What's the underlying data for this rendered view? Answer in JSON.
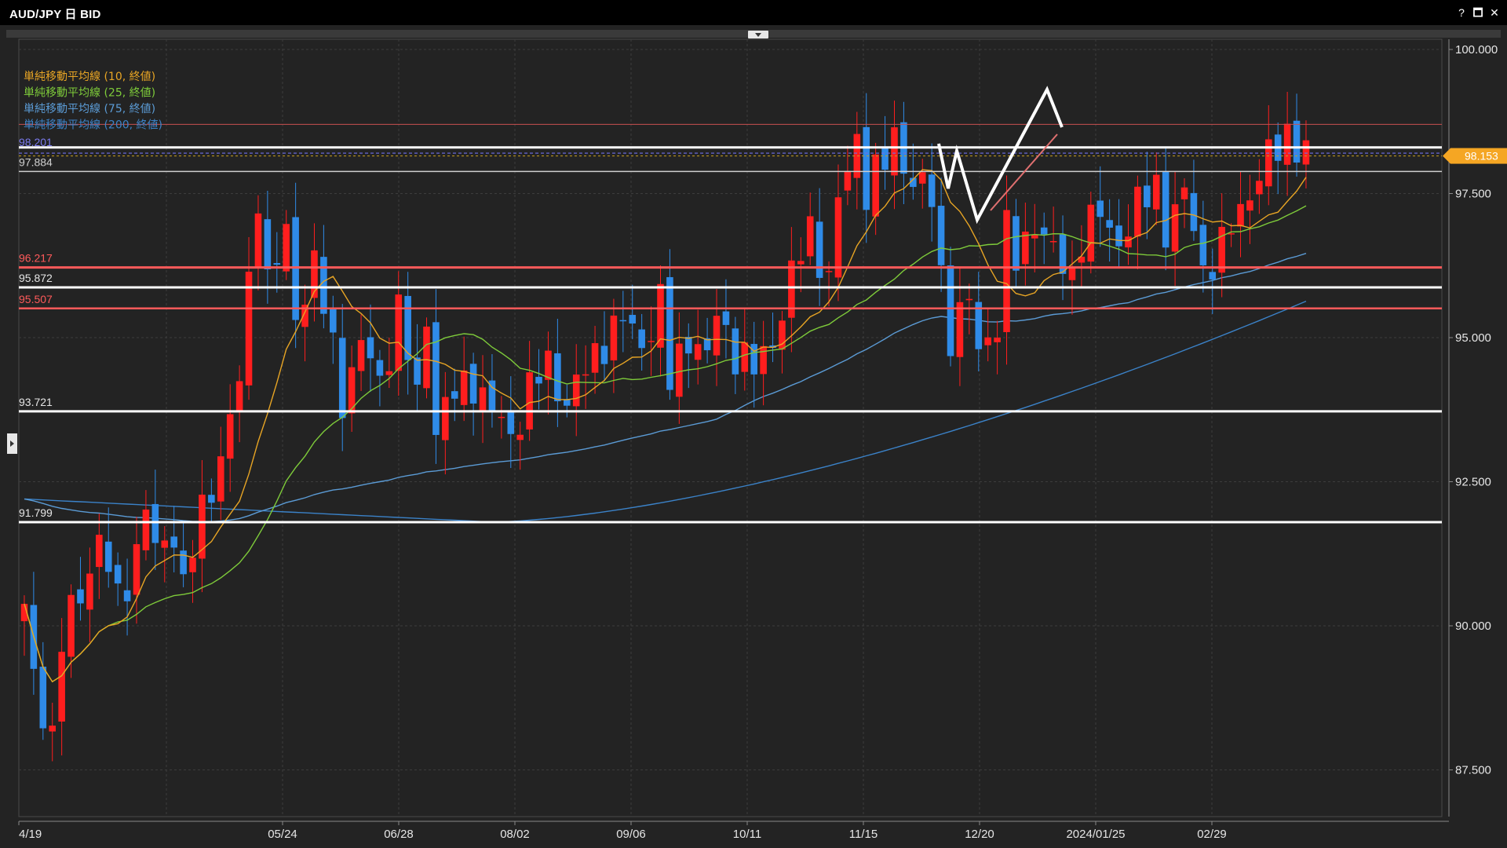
{
  "window": {
    "title": "AUD/JPY 日 BID",
    "help_label": "?",
    "maximize_label": "🗖",
    "close_label": "✕"
  },
  "icons": {
    "help": "question-icon",
    "maximize": "maximize-icon",
    "close": "close-icon",
    "collapse": "chevron-down-icon",
    "side": "chevron-right-icon"
  },
  "colors": {
    "background": "#232323",
    "up_candle": "#ff1e1e",
    "down_candle": "#2f8be8",
    "sma10": "#e8a524",
    "sma25": "#7ecb3a",
    "sma75": "#5b9bd5",
    "sma200": "#3b82c8",
    "support_white": "#ffffff",
    "support_red": "#ff5a5a",
    "current_price_badge": "#f5a623"
  },
  "chart_data": {
    "type": "candlestick",
    "title": "AUD/JPY 日 BID",
    "ylim": [
      86.7,
      100.2
    ],
    "y_ticks": [
      "100.000",
      "97.500",
      "95.000",
      "92.500",
      "90.000",
      "87.500"
    ],
    "x_ticks": [
      "4/19",
      "05/24",
      "06/28",
      "08/02",
      "09/06",
      "10/11",
      "11/15",
      "12/20",
      "2024/01/25",
      "02/29"
    ],
    "grid": true,
    "current_price": "98.153",
    "price_line": "98.201",
    "legend": [
      {
        "label": "単純移動平均線 (10, 終値)",
        "color": "#e8a524"
      },
      {
        "label": "単純移動平均線 (25, 終値)",
        "color": "#7ecb3a"
      },
      {
        "label": "単純移動平均線 (75, 終値)",
        "color": "#5b9bd5"
      },
      {
        "label": "単純移動平均線 (200, 終値)",
        "color": "#3b82c8"
      }
    ],
    "horizontal_levels": [
      {
        "value": 98.7,
        "label": "",
        "color": "#c85050",
        "width": 1
      },
      {
        "value": 98.3,
        "label": "",
        "color": "#ffffff",
        "width": 3
      },
      {
        "value": 97.884,
        "label": "97.884",
        "color": "#cfcfcf",
        "width": 1.5
      },
      {
        "value": 96.217,
        "label": "96.217",
        "color": "#ff5a5a",
        "width": 3
      },
      {
        "value": 95.872,
        "label": "95.872",
        "color": "#ffffff",
        "width": 3
      },
      {
        "value": 95.507,
        "label": "95.507",
        "color": "#ff5a5a",
        "width": 2.5
      },
      {
        "value": 93.721,
        "label": "93.721",
        "color": "#ffffff",
        "width": 3
      },
      {
        "value": 91.799,
        "label": "91.799",
        "color": "#ffffff",
        "width": 3
      }
    ],
    "close_path": [
      [
        0,
        90.2
      ],
      [
        1,
        89.1
      ],
      [
        3,
        88.1
      ],
      [
        4,
        89.7
      ],
      [
        6,
        90.6
      ],
      [
        8,
        91.5
      ],
      [
        10,
        90.4
      ],
      [
        12,
        91.3
      ],
      [
        13,
        92.1
      ],
      [
        14,
        91.2
      ],
      [
        16,
        91.7
      ],
      [
        17,
        90.7
      ],
      [
        19,
        91.9
      ],
      [
        21,
        93.0
      ],
      [
        23,
        94.2
      ],
      [
        24,
        95.9
      ],
      [
        25,
        97.6
      ],
      [
        26,
        96.0
      ],
      [
        28,
        96.7
      ],
      [
        29,
        95.4
      ],
      [
        31,
        96.3
      ],
      [
        32,
        95.5
      ],
      [
        34,
        94.0
      ],
      [
        36,
        94.9
      ],
      [
        38,
        94.2
      ],
      [
        40,
        95.5
      ],
      [
        42,
        93.9
      ],
      [
        43,
        95.4
      ],
      [
        44,
        93.5
      ],
      [
        46,
        94.0
      ],
      [
        48,
        94.3
      ],
      [
        50,
        93.7
      ],
      [
        52,
        93.3
      ],
      [
        54,
        94.1
      ],
      [
        56,
        94.5
      ],
      [
        58,
        93.9
      ],
      [
        60,
        94.4
      ],
      [
        62,
        95.0
      ],
      [
        64,
        95.3
      ],
      [
        66,
        94.9
      ],
      [
        68,
        95.6
      ],
      [
        69,
        94.2
      ],
      [
        71,
        95.1
      ],
      [
        73,
        94.6
      ],
      [
        74,
        95.4
      ],
      [
        76,
        94.8
      ],
      [
        78,
        94.4
      ],
      [
        80,
        95.0
      ],
      [
        82,
        96.0
      ],
      [
        84,
        96.9
      ],
      [
        86,
        96.0
      ],
      [
        87,
        97.3
      ],
      [
        89,
        98.5
      ],
      [
        90,
        97.6
      ],
      [
        92,
        98.0
      ],
      [
        93,
        98.5
      ],
      [
        95,
        97.7
      ],
      [
        97,
        97.4
      ],
      [
        98,
        96.1
      ],
      [
        99,
        95.1
      ],
      [
        101,
        95.6
      ],
      [
        102,
        94.8
      ],
      [
        104,
        95.3
      ],
      [
        105,
        96.8
      ],
      [
        106,
        96.3
      ],
      [
        108,
        97.1
      ],
      [
        110,
        96.4
      ],
      [
        112,
        96.1
      ],
      [
        113,
        96.8
      ],
      [
        115,
        97.1
      ],
      [
        117,
        96.7
      ],
      [
        119,
        97.2
      ],
      [
        121,
        97.7
      ],
      [
        122,
        96.9
      ],
      [
        124,
        97.4
      ],
      [
        125,
        97.0
      ],
      [
        126,
        96.2
      ],
      [
        128,
        96.5
      ],
      [
        130,
        97.3
      ],
      [
        132,
        97.8
      ],
      [
        134,
        98.3
      ],
      [
        135,
        98.6
      ],
      [
        137,
        98.15
      ]
    ],
    "line_pattern": [
      [
        1196,
        183
      ],
      [
        1208,
        240
      ],
      [
        1219,
        192
      ],
      [
        1245,
        280
      ],
      [
        1334,
        114
      ],
      [
        1353,
        162
      ]
    ],
    "x_tick_positions": [
      25,
      173,
      321,
      469,
      617,
      765,
      913,
      1061,
      1209,
      1357
    ]
  }
}
